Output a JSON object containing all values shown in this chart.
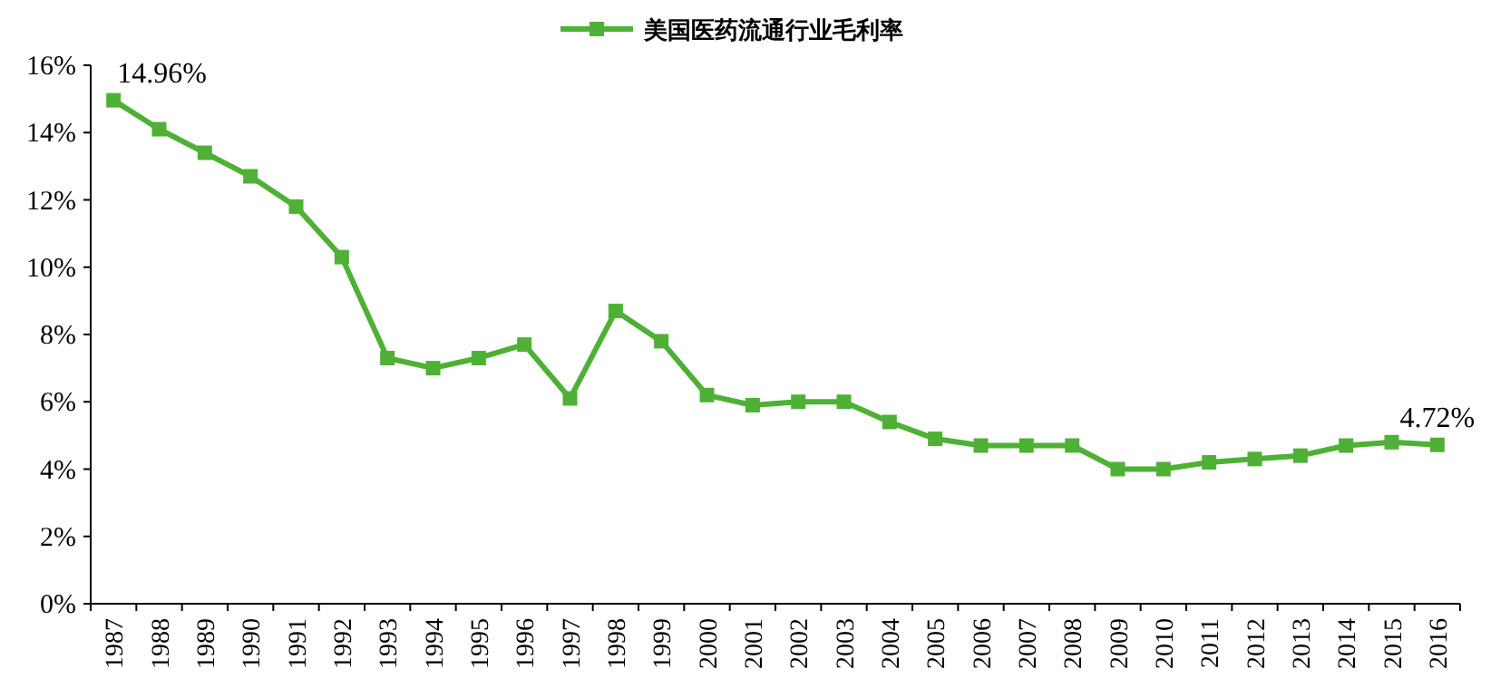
{
  "chart_data": {
    "type": "line",
    "categories": [
      "1987",
      "1988",
      "1989",
      "1990",
      "1991",
      "1992",
      "1993",
      "1994",
      "1995",
      "1996",
      "1997",
      "1998",
      "1999",
      "2000",
      "2001",
      "2002",
      "2003",
      "2004",
      "2005",
      "2006",
      "2007",
      "2008",
      "2009",
      "2010",
      "2011",
      "2012",
      "2013",
      "2014",
      "2015",
      "2016"
    ],
    "series": [
      {
        "name": "美国医药流通行业毛利率",
        "color": "#4eb136",
        "values": [
          14.96,
          14.1,
          13.4,
          12.7,
          11.8,
          10.3,
          7.3,
          7.0,
          7.3,
          7.7,
          6.1,
          8.7,
          7.8,
          6.2,
          5.9,
          6.0,
          6.0,
          5.4,
          4.9,
          4.7,
          4.7,
          4.7,
          4.0,
          4.0,
          4.2,
          4.3,
          4.4,
          4.7,
          4.8,
          4.72
        ],
        "value_labels": [
          "14.96%",
          null,
          null,
          null,
          null,
          null,
          null,
          null,
          null,
          null,
          null,
          null,
          null,
          null,
          null,
          null,
          null,
          null,
          null,
          null,
          null,
          null,
          null,
          null,
          null,
          null,
          null,
          null,
          null,
          "4.72%"
        ]
      }
    ],
    "ylim": [
      0,
      16
    ],
    "yticks": [
      {
        "value": 0,
        "label": "0%"
      },
      {
        "value": 2,
        "label": "2%"
      },
      {
        "value": 4,
        "label": "4%"
      },
      {
        "value": 6,
        "label": "6%"
      },
      {
        "value": 8,
        "label": "8%"
      },
      {
        "value": 10,
        "label": "10%"
      },
      {
        "value": 12,
        "label": "12%"
      },
      {
        "value": 14,
        "label": "14%"
      },
      {
        "value": 16,
        "label": "16%"
      }
    ],
    "grid": false,
    "legend": "top",
    "marker": "square",
    "line_style": "solid"
  }
}
